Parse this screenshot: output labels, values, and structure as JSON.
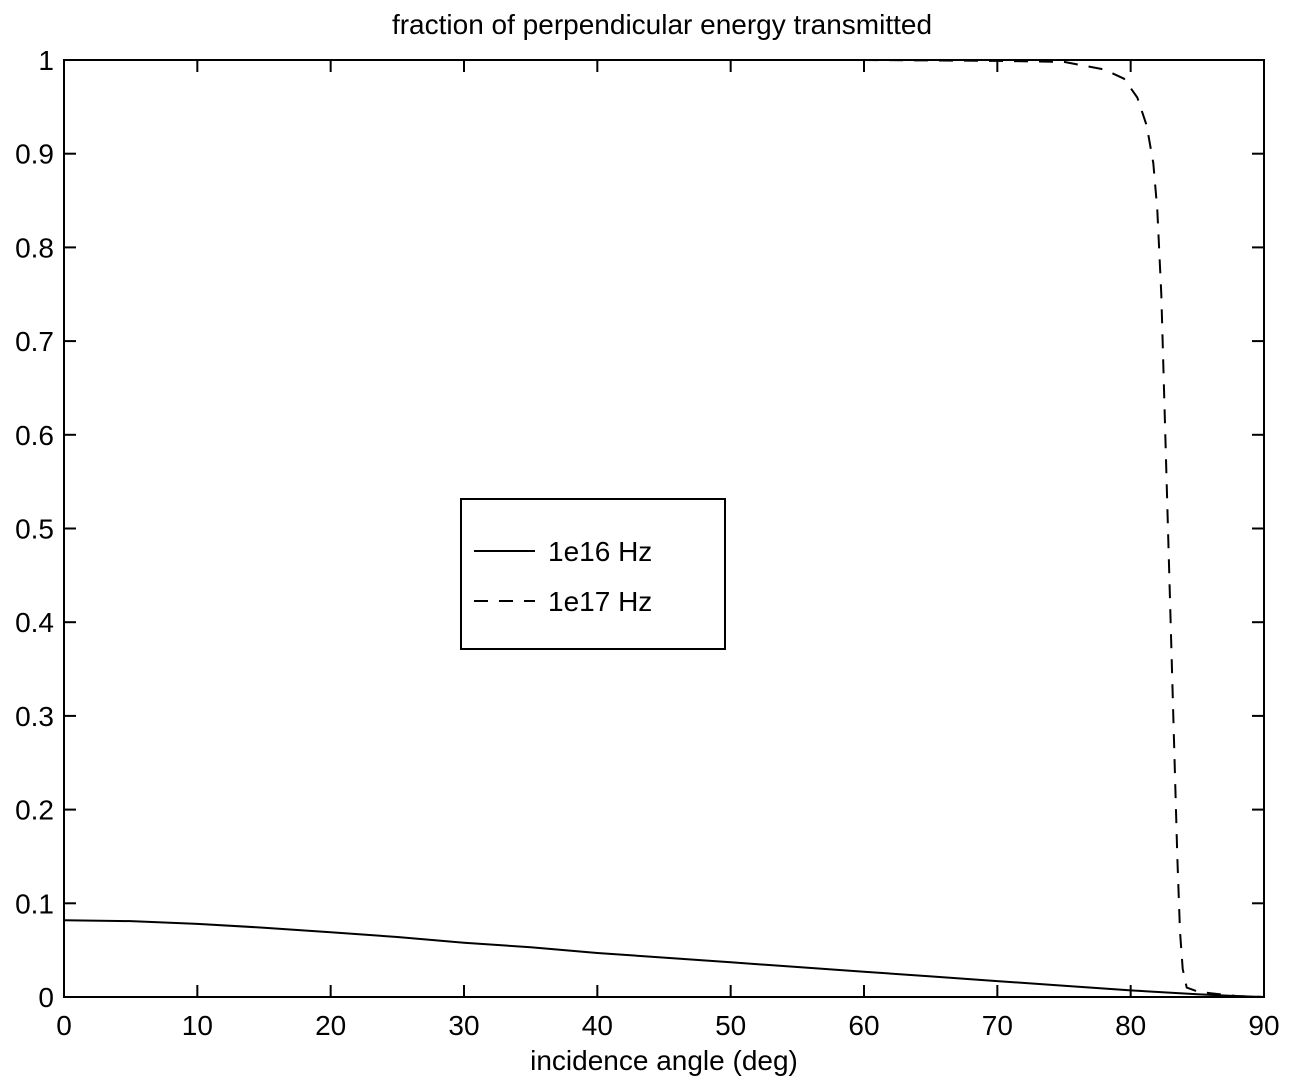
{
  "chart_data": {
    "type": "line",
    "title": "fraction of perpendicular energy transmitted",
    "xlabel": "incidence angle (deg)",
    "ylabel": "",
    "xlim": [
      0,
      90
    ],
    "ylim": [
      0,
      1
    ],
    "xticks": [
      0,
      10,
      20,
      30,
      40,
      50,
      60,
      70,
      80,
      90
    ],
    "yticks": [
      0,
      0.1,
      0.2,
      0.3,
      0.4,
      0.5,
      0.6,
      0.7,
      0.8,
      0.9,
      1
    ],
    "xtick_labels": [
      "0",
      "10",
      "20",
      "30",
      "40",
      "50",
      "60",
      "70",
      "80",
      "90"
    ],
    "ytick_labels": [
      "0",
      "0.1",
      "0.2",
      "0.3",
      "0.4",
      "0.5",
      "0.6",
      "0.7",
      "0.8",
      "0.9",
      "1"
    ],
    "grid": false,
    "legend_position": "center-left",
    "series": [
      {
        "name": "1e16 Hz",
        "style": "solid",
        "color": "#000000",
        "x": [
          0,
          5,
          10,
          15,
          20,
          25,
          30,
          35,
          40,
          45,
          50,
          55,
          60,
          65,
          70,
          75,
          80,
          85,
          88,
          90
        ],
        "y": [
          0.082,
          0.081,
          0.078,
          0.074,
          0.069,
          0.064,
          0.058,
          0.053,
          0.047,
          0.042,
          0.037,
          0.032,
          0.027,
          0.022,
          0.017,
          0.012,
          0.007,
          0.003,
          0.001,
          0.0
        ]
      },
      {
        "name": "1e17 Hz",
        "style": "dashed",
        "color": "#000000",
        "x": [
          0,
          20,
          40,
          60,
          70,
          75,
          78,
          79.5,
          80.5,
          81.2,
          81.7,
          82.0,
          82.3,
          82.6,
          82.9,
          83.2,
          83.5,
          83.7,
          83.9,
          84.2,
          85,
          86,
          88,
          90
        ],
        "y": [
          1.0,
          1.0,
          1.0,
          1.0,
          0.999,
          0.998,
          0.99,
          0.98,
          0.96,
          0.93,
          0.89,
          0.84,
          0.75,
          0.6,
          0.45,
          0.3,
          0.15,
          0.07,
          0.03,
          0.01,
          0.006,
          0.004,
          0.001,
          0.0
        ]
      }
    ]
  }
}
